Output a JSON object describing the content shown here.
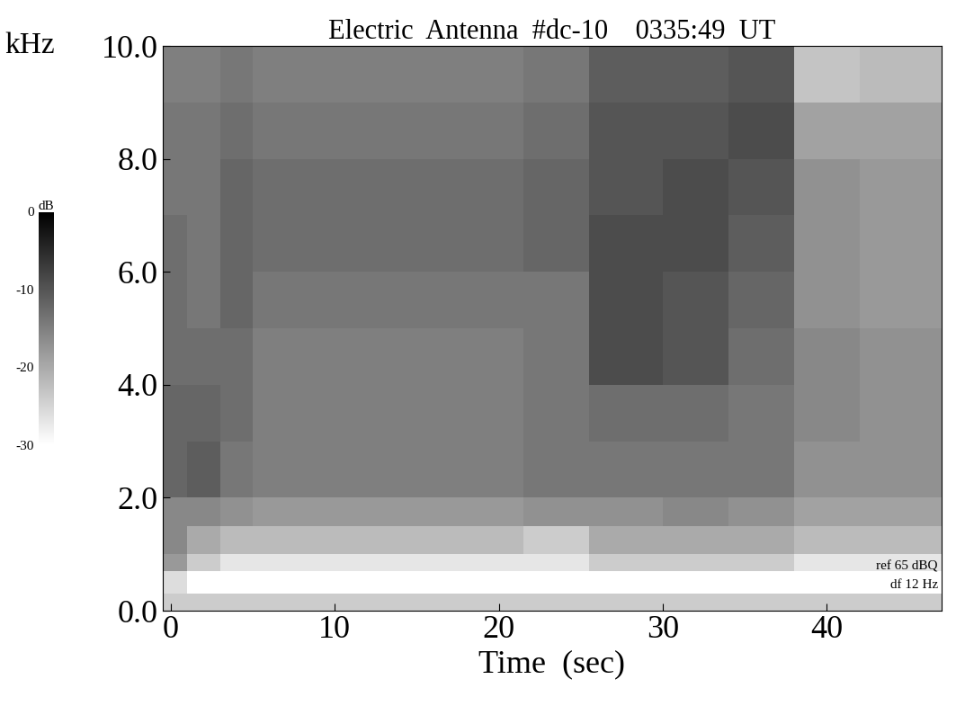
{
  "chart_data": {
    "type": "spectrogram",
    "title": "Electric  Antenna  #dc-10    0335:49  UT",
    "xlabel": "Time  (sec)",
    "ylabel": "kHz",
    "annotations": [
      "ref 65 dBQ",
      "df 12 Hz"
    ],
    "xlim": [
      -0.5,
      47
    ],
    "xticks": [
      0,
      10,
      20,
      30,
      40
    ],
    "ylim": [
      0,
      10
    ],
    "yticks": [
      {
        "value": 0,
        "label": "0.0"
      },
      {
        "value": 2,
        "label": "2.0"
      },
      {
        "value": 4,
        "label": "4.0"
      },
      {
        "value": 6,
        "label": "6.0"
      },
      {
        "value": 8,
        "label": "8.0"
      },
      {
        "value": 10,
        "label": "10.0"
      }
    ],
    "time_edges": [
      -0.5,
      1,
      3,
      5,
      10,
      15,
      21.5,
      25.5,
      30,
      34,
      38,
      42,
      47
    ],
    "freq_edges": [
      0,
      0.3,
      0.7,
      1.0,
      1.5,
      2,
      3,
      4,
      5,
      6,
      7,
      8,
      9,
      10
    ],
    "cells": [
      [
        -24,
        -24,
        -24,
        -24,
        -24,
        -24,
        -24,
        -24,
        -24,
        -24,
        -24,
        -24
      ],
      [
        -26,
        -30,
        -30,
        -30,
        -30,
        -30,
        -30,
        -30,
        -30,
        -30,
        -30,
        -30
      ],
      [
        -18,
        -24,
        -27,
        -27,
        -27,
        -27,
        -27,
        -24,
        -24,
        -24,
        -27,
        -27
      ],
      [
        -16,
        -20,
        -22,
        -22,
        -22,
        -22,
        -24,
        -20,
        -20,
        -20,
        -22,
        -22
      ],
      [
        -16,
        -16,
        -17,
        -18,
        -18,
        -18,
        -17,
        -17,
        -16,
        -17,
        -19,
        -19
      ],
      [
        -12,
        -11,
        -14,
        -15,
        -15,
        -15,
        -14,
        -14,
        -14,
        -14,
        -17,
        -17
      ],
      [
        -12,
        -12,
        -13,
        -15,
        -15,
        -15,
        -14,
        -13,
        -13,
        -14,
        -16,
        -17
      ],
      [
        -13,
        -13,
        -13,
        -15,
        -15,
        -15,
        -14,
        -9,
        -10,
        -13,
        -16,
        -17
      ],
      [
        -13,
        -14,
        -12,
        -14,
        -14,
        -14,
        -14,
        -9,
        -10,
        -12,
        -17,
        -18
      ],
      [
        -13,
        -14,
        -12,
        -13,
        -13,
        -13,
        -12,
        -9,
        -9,
        -11,
        -17,
        -18
      ],
      [
        -14,
        -14,
        -12,
        -13,
        -13,
        -13,
        -12,
        -10,
        -9,
        -10,
        -17,
        -18
      ],
      [
        -14,
        -14,
        -13,
        -14,
        -14,
        -14,
        -13,
        -10,
        -10,
        -9,
        -19,
        -19
      ],
      [
        -15,
        -15,
        -14,
        -15,
        -15,
        -15,
        -14,
        -11,
        -11,
        -10,
        -23,
        -22
      ]
    ],
    "colorbar": {
      "label": "dB",
      "range": [
        -30,
        0
      ],
      "ticks": [
        0,
        -10,
        -20,
        -30
      ]
    }
  }
}
